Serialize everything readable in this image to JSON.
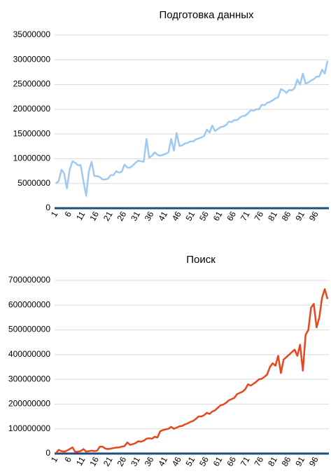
{
  "chart_data": [
    {
      "type": "line",
      "title": "Подготовка данных",
      "color": "#9fc9f2",
      "ylim": [
        0,
        35000000
      ],
      "yticks": [
        0,
        5000000,
        10000000,
        15000000,
        20000000,
        25000000,
        30000000,
        35000000
      ],
      "grid": true,
      "categories": [
        "1",
        null,
        null,
        null,
        null,
        "6",
        null,
        null,
        null,
        null,
        "11",
        null,
        null,
        null,
        null,
        "16",
        null,
        null,
        null,
        null,
        "21",
        null,
        null,
        null,
        null,
        "26",
        null,
        null,
        null,
        null,
        "31",
        null,
        null,
        null,
        null,
        "36",
        null,
        null,
        null,
        null,
        "41",
        null,
        null,
        null,
        null,
        "46",
        null,
        null,
        null,
        null,
        "51",
        null,
        null,
        null,
        null,
        "56",
        null,
        null,
        null,
        null,
        "61",
        null,
        null,
        null,
        null,
        "66",
        null,
        null,
        null,
        null,
        "71",
        null,
        null,
        null,
        null,
        "76",
        null,
        null,
        null,
        null,
        "81",
        null,
        null,
        null,
        null,
        "86",
        null,
        null,
        null,
        null,
        "91",
        null,
        null,
        null,
        null,
        "96",
        null,
        null,
        null,
        null
      ],
      "values": [
        5000000,
        5500000,
        7800000,
        7000000,
        4000000,
        7800000,
        9500000,
        9200000,
        8700000,
        8700000,
        5500000,
        2500000,
        7500000,
        9400000,
        6500000,
        6500000,
        6300000,
        5800000,
        5800000,
        6000000,
        6700000,
        6700000,
        7500000,
        7200000,
        7400000,
        8800000,
        8200000,
        8200000,
        8600000,
        9200000,
        9600000,
        9500000,
        9400000,
        14000000,
        10200000,
        10600000,
        11300000,
        10800000,
        10600000,
        10800000,
        11000000,
        11300000,
        14000000,
        11600000,
        15200000,
        12600000,
        12700000,
        13100000,
        13200000,
        13500000,
        13500000,
        13900000,
        14100000,
        14300000,
        14600000,
        15900000,
        15300000,
        16700000,
        15600000,
        16000000,
        16400000,
        16500000,
        16800000,
        17500000,
        17400000,
        17800000,
        17800000,
        18300000,
        18600000,
        18700000,
        19200000,
        19800000,
        19700000,
        20000000,
        20000000,
        20900000,
        20800000,
        21300000,
        21500000,
        21800000,
        22200000,
        22400000,
        24100000,
        23800000,
        23300000,
        23900000,
        23800000,
        24300000,
        26000000,
        25000000,
        27200000,
        25200000,
        25400000,
        25800000,
        26100000,
        26600000,
        26600000,
        28000000,
        27200000,
        29800000
      ]
    },
    {
      "type": "line",
      "title": "Поиск",
      "color": "#e8461e",
      "ylim": [
        0,
        700000000
      ],
      "yticks": [
        0,
        100000000,
        200000000,
        300000000,
        400000000,
        500000000,
        600000000,
        700000000
      ],
      "grid": true,
      "categories": [
        "1",
        null,
        null,
        null,
        null,
        "6",
        null,
        null,
        null,
        null,
        "11",
        null,
        null,
        null,
        null,
        "16",
        null,
        null,
        null,
        null,
        "21",
        null,
        null,
        null,
        null,
        "26",
        null,
        null,
        null,
        null,
        "31",
        null,
        null,
        null,
        null,
        "36",
        null,
        null,
        null,
        null,
        "41",
        null,
        null,
        null,
        null,
        "46",
        null,
        null,
        null,
        null,
        "51",
        null,
        null,
        null,
        null,
        "56",
        null,
        null,
        null,
        null,
        "61",
        null,
        null,
        null,
        null,
        "66",
        null,
        null,
        null,
        null,
        "71",
        null,
        null,
        null,
        null,
        "76",
        null,
        null,
        null,
        null,
        "81",
        null,
        null,
        null,
        null,
        "86",
        null,
        null,
        null,
        null,
        "91",
        null,
        null,
        null,
        null,
        "96",
        null,
        null,
        null,
        null
      ],
      "values": [
        2000000,
        15000000,
        10000000,
        8000000,
        12000000,
        18000000,
        25000000,
        7000000,
        8000000,
        10000000,
        18000000,
        8000000,
        10000000,
        12000000,
        10000000,
        12000000,
        28000000,
        28000000,
        20000000,
        18000000,
        20000000,
        22000000,
        24000000,
        25000000,
        28000000,
        30000000,
        45000000,
        35000000,
        38000000,
        42000000,
        50000000,
        48000000,
        52000000,
        60000000,
        62000000,
        60000000,
        68000000,
        65000000,
        90000000,
        95000000,
        98000000,
        100000000,
        108000000,
        100000000,
        105000000,
        110000000,
        112000000,
        118000000,
        122000000,
        128000000,
        132000000,
        140000000,
        150000000,
        150000000,
        155000000,
        165000000,
        160000000,
        170000000,
        175000000,
        185000000,
        195000000,
        198000000,
        205000000,
        215000000,
        220000000,
        225000000,
        240000000,
        245000000,
        250000000,
        260000000,
        280000000,
        275000000,
        282000000,
        290000000,
        300000000,
        302000000,
        310000000,
        320000000,
        350000000,
        365000000,
        355000000,
        395000000,
        325000000,
        380000000,
        390000000,
        400000000,
        410000000,
        420000000,
        395000000,
        440000000,
        335000000,
        480000000,
        500000000,
        590000000,
        605000000,
        510000000,
        550000000,
        630000000,
        665000000,
        625000000
      ]
    }
  ]
}
